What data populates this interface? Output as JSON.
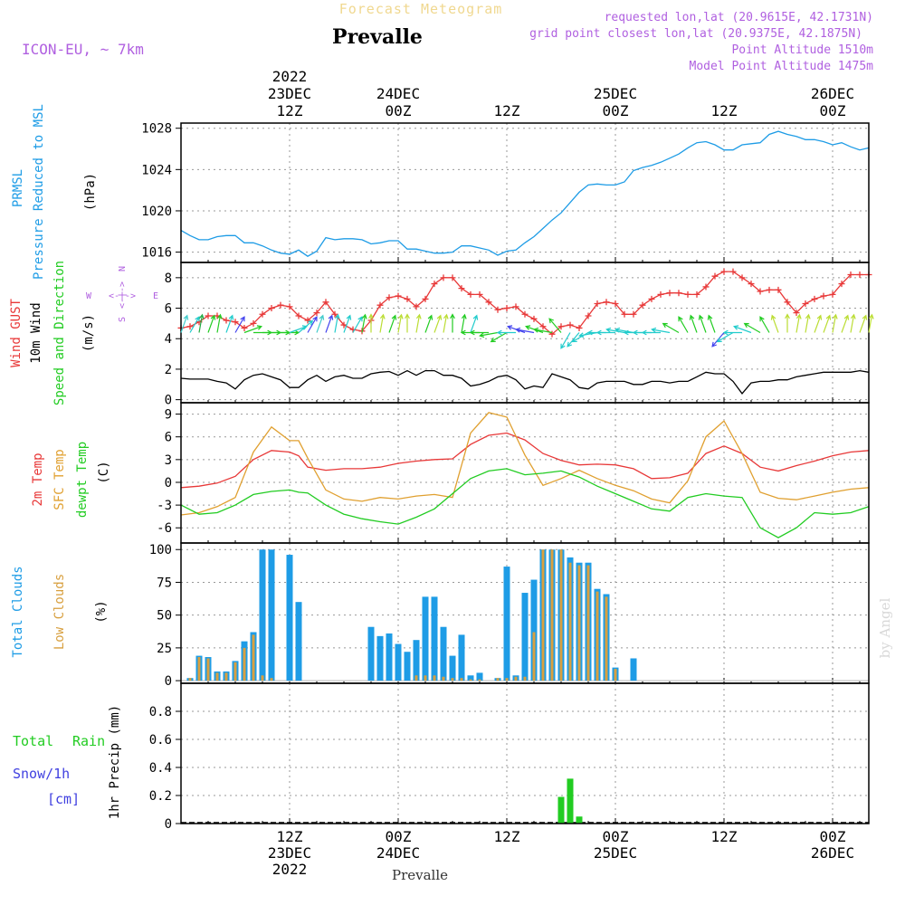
{
  "header": {
    "title": "Forecast Meteogram",
    "location": "Prevalle",
    "model": "ICON-EU, ~ 7km",
    "requested": "requested lon,lat (20.9615E, 42.1731N)",
    "grid_point": "grid point closest lon,lat (20.9375E, 42.1875N)",
    "point_altitude": "Point Altitude 1510m",
    "model_altitude": "Model Point Altitude 1475m",
    "watermark": "by Angel",
    "footer_location": "Prevalle"
  },
  "colors": {
    "pressure": "#1e9ce6",
    "gust": "#e83838",
    "wind": "#000000",
    "wind_dir": "#22cc22",
    "t2m": "#e83838",
    "sfc": "#e0a030",
    "dewpt": "#22cc22",
    "total_clouds": "#1e9ce6",
    "low_clouds": "#d8a040",
    "rain": "#22cc22",
    "snow": "#4040e0",
    "compass": "#b060e0",
    "header_purple": "#b060e0"
  },
  "time_axis": {
    "top_labels": [
      {
        "h": 12,
        "lines": [
          "2022",
          "23DEC",
          "12Z"
        ]
      },
      {
        "h": 24,
        "lines": [
          "24DEC",
          "00Z"
        ]
      },
      {
        "h": 36,
        "lines": [
          "12Z"
        ]
      },
      {
        "h": 48,
        "lines": [
          "25DEC",
          "00Z"
        ]
      },
      {
        "h": 60,
        "lines": [
          "12Z"
        ]
      },
      {
        "h": 72,
        "lines": [
          "26DEC",
          "00Z"
        ]
      }
    ],
    "bottom_labels": [
      {
        "h": 12,
        "lines": [
          "12Z",
          "23DEC",
          "2022"
        ]
      },
      {
        "h": 24,
        "lines": [
          "00Z",
          "24DEC"
        ]
      },
      {
        "h": 36,
        "lines": [
          "12Z"
        ]
      },
      {
        "h": 48,
        "lines": [
          "00Z",
          "25DEC"
        ]
      },
      {
        "h": 60,
        "lines": [
          "12Z"
        ]
      },
      {
        "h": 72,
        "lines": [
          "00Z",
          "26DEC"
        ]
      }
    ]
  },
  "chart_data": [
    {
      "type": "line",
      "name": "pressure",
      "labels": [
        "PRMSL",
        "Pressure Reduced to MSL",
        "(hPa)"
      ],
      "ylim": [
        1015,
        1028.5
      ],
      "ticks": [
        1016,
        1020,
        1024,
        1028
      ],
      "x": [
        0,
        1,
        2,
        3,
        4,
        5,
        6,
        7,
        8,
        9,
        10,
        11,
        12,
        13,
        14,
        15,
        16,
        17,
        18,
        19,
        20,
        21,
        22,
        23,
        24,
        25,
        26,
        27,
        28,
        29,
        30,
        31,
        32,
        33,
        34,
        35,
        36,
        37,
        38,
        39,
        40,
        41,
        42,
        43,
        44,
        45,
        46,
        47,
        48,
        49,
        50,
        51,
        52,
        53,
        54,
        55,
        56,
        57,
        58,
        59,
        60,
        61,
        62,
        63,
        64,
        65,
        66,
        67,
        68,
        69,
        70,
        71,
        72,
        73,
        74,
        75,
        76
      ],
      "series": [
        {
          "values": [
            1018.1,
            1017.6,
            1017.2,
            1017.2,
            1017.5,
            1017.6,
            1017.6,
            1016.9,
            1016.9,
            1016.6,
            1016.2,
            1015.9,
            1015.8,
            1016.2,
            1015.6,
            1016.1,
            1017.4,
            1017.2,
            1017.3,
            1017.3,
            1017.2,
            1016.8,
            1016.9,
            1017.1,
            1017.1,
            1016.3,
            1016.3,
            1016.1,
            1015.9,
            1015.9,
            1016.0,
            1016.6,
            1016.6,
            1016.4,
            1016.2,
            1015.7,
            1016.1,
            1016.2,
            1016.9,
            1017.5,
            1018.3,
            1019.1,
            1019.8,
            1020.8,
            1021.8,
            1022.5,
            1022.6,
            1022.5,
            1022.5,
            1022.8,
            1023.9,
            1024.2,
            1024.4,
            1024.7,
            1025.1,
            1025.5,
            1026.1,
            1026.6,
            1026.7,
            1026.4,
            1025.9,
            1025.9,
            1026.4,
            1026.5,
            1026.6,
            1027.4,
            1027.7,
            1027.4,
            1027.2,
            1026.9,
            1026.9,
            1026.7,
            1026.4,
            1026.6,
            1026.2,
            1025.9,
            1026.1
          ]
        }
      ]
    },
    {
      "type": "line",
      "name": "wind",
      "labels": [
        "Wind GUST",
        "10m Wind",
        "Speed and Direction",
        "(m/s)"
      ],
      "compass": {
        "n": "N",
        "s": "S",
        "e": "E",
        "w": "W",
        "arrow": "<-|->"
      },
      "ylim": [
        -0.2,
        9
      ],
      "ticks": [
        0,
        2,
        4,
        6,
        8
      ],
      "x": [
        0,
        1,
        2,
        3,
        4,
        5,
        6,
        7,
        8,
        9,
        10,
        11,
        12,
        13,
        14,
        15,
        16,
        17,
        18,
        19,
        20,
        21,
        22,
        23,
        24,
        25,
        26,
        27,
        28,
        29,
        30,
        31,
        32,
        33,
        34,
        35,
        36,
        37,
        38,
        39,
        40,
        41,
        42,
        43,
        44,
        45,
        46,
        47,
        48,
        49,
        50,
        51,
        52,
        53,
        54,
        55,
        56,
        57,
        58,
        59,
        60,
        61,
        62,
        63,
        64,
        65,
        66,
        67,
        68,
        69,
        70,
        71,
        72,
        73,
        74,
        75,
        76
      ],
      "series": [
        {
          "key": "gust",
          "values": [
            4.7,
            4.8,
            5.1,
            5.5,
            5.5,
            5.2,
            5.1,
            4.7,
            5.0,
            5.6,
            6.0,
            6.2,
            6.1,
            5.5,
            5.2,
            5.7,
            6.4,
            5.6,
            4.9,
            4.6,
            4.5,
            5.2,
            6.2,
            6.7,
            6.8,
            6.6,
            6.1,
            6.6,
            7.6,
            8.0,
            8.0,
            7.3,
            6.9,
            6.9,
            6.4,
            5.9,
            6.0,
            6.1,
            5.6,
            5.3,
            4.8,
            4.3,
            4.8,
            4.9,
            4.7,
            5.5,
            6.3,
            6.4,
            6.3,
            5.6,
            5.6,
            6.2,
            6.6,
            6.9,
            7.0,
            7.0,
            6.9,
            6.9,
            7.4,
            8.1,
            8.4,
            8.4,
            8.0,
            7.6,
            7.1,
            7.2,
            7.2,
            6.4,
            5.7,
            6.3,
            6.6,
            6.8,
            6.9,
            7.6,
            8.2,
            8.2,
            8.2
          ]
        },
        {
          "key": "wind",
          "values": [
            1.4,
            1.35,
            1.35,
            1.35,
            1.2,
            1.1,
            0.7,
            1.3,
            1.6,
            1.7,
            1.5,
            1.3,
            0.8,
            0.8,
            1.3,
            1.6,
            1.2,
            1.5,
            1.6,
            1.4,
            1.4,
            1.7,
            1.8,
            1.85,
            1.6,
            1.9,
            1.6,
            1.9,
            1.9,
            1.6,
            1.6,
            1.4,
            0.9,
            1.0,
            1.2,
            1.5,
            1.6,
            1.3,
            0.7,
            0.9,
            0.8,
            1.7,
            1.5,
            1.3,
            0.8,
            0.7,
            1.1,
            1.2,
            1.2,
            1.2,
            1.0,
            1.0,
            1.2,
            1.2,
            1.1,
            1.2,
            1.2,
            1.5,
            1.8,
            1.7,
            1.7,
            1.2,
            0.4,
            1.1,
            1.2,
            1.2,
            1.3,
            1.3,
            1.5,
            1.6,
            1.7,
            1.8,
            1.8,
            1.8,
            1.8,
            1.9,
            1.8
          ]
        }
      ]
    },
    {
      "type": "line",
      "name": "temperature",
      "labels": [
        "2m Temp",
        "SFC Temp",
        "dewpt Temp",
        "(C)"
      ],
      "ylim": [
        -8,
        10.5
      ],
      "ticks": [
        -6,
        -3,
        0,
        3,
        6,
        9
      ],
      "x": [
        0,
        2,
        4,
        6,
        8,
        10,
        12,
        13,
        14,
        16,
        18,
        20,
        22,
        24,
        26,
        28,
        30,
        32,
        34,
        36,
        38,
        40,
        42,
        44,
        46,
        48,
        50,
        52,
        54,
        56,
        58,
        60,
        62,
        64,
        66,
        68,
        70,
        72,
        74,
        76
      ],
      "series": [
        {
          "key": "t2m",
          "values": [
            -0.7,
            -0.5,
            -0.1,
            0.8,
            3.0,
            4.2,
            4.0,
            3.5,
            2.0,
            1.6,
            1.8,
            1.8,
            2.0,
            2.5,
            2.8,
            3.0,
            3.1,
            5.0,
            6.2,
            6.5,
            5.6,
            3.8,
            2.9,
            2.3,
            2.4,
            2.3,
            1.8,
            0.5,
            0.6,
            1.2,
            3.8,
            4.8,
            3.8,
            2.0,
            1.5,
            2.2,
            2.8,
            3.5,
            4.0,
            4.2
          ]
        },
        {
          "key": "sfc",
          "values": [
            -4.3,
            -4.0,
            -3.2,
            -2.0,
            4.0,
            7.3,
            5.5,
            5.5,
            3.2,
            -1.0,
            -2.2,
            -2.5,
            -2.0,
            -2.2,
            -1.8,
            -1.6,
            -2.0,
            6.5,
            9.2,
            8.6,
            3.6,
            -0.4,
            0.5,
            1.6,
            0.5,
            -0.4,
            -1.1,
            -2.2,
            -2.7,
            0.2,
            6.0,
            8.1,
            3.8,
            -1.3,
            -2.1,
            -2.3,
            -1.8,
            -1.3,
            -0.9,
            -0.7
          ]
        },
        {
          "key": "dewpt",
          "values": [
            -3.0,
            -4.2,
            -4.0,
            -3.0,
            -1.6,
            -1.2,
            -1.0,
            -1.3,
            -1.4,
            -3.0,
            -4.2,
            -4.8,
            -5.2,
            -5.5,
            -4.6,
            -3.5,
            -1.5,
            0.5,
            1.5,
            1.8,
            1.0,
            1.2,
            1.5,
            0.7,
            -0.5,
            -1.5,
            -2.5,
            -3.5,
            -3.8,
            -2.0,
            -1.5,
            -1.8,
            -2.0,
            -6.0,
            -7.3,
            -6.0,
            -4.0,
            -4.2,
            -4.0,
            -3.2
          ]
        }
      ]
    },
    {
      "type": "bar",
      "name": "clouds",
      "labels": [
        "Total Clouds",
        "Low Clouds",
        "(%)"
      ],
      "ylim": [
        -2,
        105
      ],
      "ticks": [
        0,
        25,
        50,
        75,
        100
      ],
      "x": [
        0,
        1,
        2,
        3,
        4,
        5,
        6,
        7,
        8,
        9,
        10,
        11,
        12,
        13,
        14,
        15,
        16,
        17,
        18,
        19,
        20,
        21,
        22,
        23,
        24,
        25,
        26,
        27,
        28,
        29,
        30,
        31,
        32,
        33,
        34,
        35,
        36,
        37,
        38,
        39,
        40,
        41,
        42,
        43,
        44,
        45,
        46,
        47,
        48,
        49,
        50,
        51,
        52,
        53,
        54,
        55,
        56,
        57,
        58,
        59,
        60,
        61,
        62,
        63,
        64,
        65,
        66,
        67,
        68,
        69,
        70,
        71,
        72,
        73,
        74,
        75,
        76
      ],
      "series": [
        {
          "key": "total_clouds",
          "values": [
            0,
            2,
            19,
            18,
            7,
            7,
            15,
            30,
            37,
            100,
            100,
            0,
            96,
            60,
            0,
            0,
            0,
            0,
            0,
            0,
            0,
            41,
            34,
            36,
            28,
            22,
            31,
            64,
            64,
            41,
            19,
            35,
            4,
            6,
            0,
            2,
            87,
            4,
            67,
            77,
            100,
            100,
            100,
            94,
            90,
            90,
            70,
            66,
            10,
            0,
            17,
            0,
            0,
            0,
            0,
            0,
            0,
            0,
            0,
            0,
            0,
            0,
            0,
            0,
            0,
            0,
            0,
            0,
            0,
            0,
            0,
            0,
            0,
            0,
            0,
            0,
            0
          ]
        },
        {
          "key": "low_clouds",
          "values": [
            0,
            2,
            18,
            17,
            6,
            6,
            14,
            25,
            35,
            4,
            2,
            0,
            0,
            0,
            0,
            0,
            0,
            0,
            0,
            0,
            0,
            0,
            0,
            0,
            0,
            0,
            4,
            4,
            4,
            3,
            2,
            2,
            1,
            1,
            0,
            2,
            2,
            3,
            3,
            37,
            100,
            100,
            100,
            90,
            88,
            88,
            68,
            64,
            9,
            0,
            0,
            0,
            0,
            0,
            0,
            0,
            0,
            0,
            0,
            0,
            0,
            0,
            0,
            0,
            0,
            0,
            0,
            0,
            0,
            0,
            0,
            0,
            0,
            0,
            0,
            0,
            0
          ]
        }
      ]
    },
    {
      "type": "bar",
      "name": "precip",
      "labels": [
        "Total",
        "Rain",
        "Snow/1h",
        "[cm]",
        "1hr Precip (mm)"
      ],
      "ylim": [
        0,
        1.0
      ],
      "ticks": [
        0,
        0.2,
        0.4,
        0.6,
        0.8
      ],
      "x": [
        42,
        43,
        44
      ],
      "series": [
        {
          "key": "rain",
          "values": [
            0.19,
            0.32,
            0.05
          ]
        }
      ]
    }
  ],
  "wind_vectors": {
    "x": [
      0,
      1,
      2,
      3,
      4,
      5,
      6,
      7,
      8,
      9,
      10,
      11,
      12,
      13,
      14,
      15,
      16,
      17,
      18,
      19,
      20,
      21,
      22,
      23,
      24,
      25,
      26,
      27,
      28,
      29,
      30,
      31,
      32,
      33,
      34,
      35,
      36,
      37,
      38,
      39,
      40,
      41,
      42,
      43,
      44,
      45,
      46,
      47,
      48,
      49,
      50,
      51,
      52,
      53,
      54,
      55,
      56,
      57,
      58,
      59,
      60,
      61,
      62,
      63,
      64,
      65,
      66,
      67,
      68,
      69,
      70,
      71,
      72,
      73,
      74,
      75,
      76
    ],
    "dir_deg": [
      200,
      210,
      190,
      200,
      190,
      200,
      210,
      250,
      270,
      270,
      270,
      270,
      250,
      230,
      210,
      200,
      200,
      190,
      200,
      210,
      190,
      180,
      190,
      200,
      190,
      180,
      190,
      200,
      200,
      190,
      180,
      190,
      200,
      90,
      90,
      80,
      60,
      90,
      110,
      100,
      110,
      100,
      140,
      30,
      40,
      60,
      80,
      90,
      90,
      100,
      100,
      90,
      90,
      90,
      100,
      120,
      150,
      160,
      160,
      160,
      40,
      60,
      90,
      110,
      120,
      150,
      160,
      180,
      190,
      190,
      200,
      200,
      190,
      200,
      190,
      200,
      190
    ],
    "color": [
      "#44cccc",
      "#22cccc",
      "#22aa44",
      "#22cc22",
      "#22cc22",
      "#22cccc",
      "#4444ee",
      "#22cc22",
      "#22cc22",
      "#22cc22",
      "#22cc22",
      "#22cc22",
      "#22cccc",
      "#22cccc",
      "#4444ee",
      "#44cccc",
      "#4444ee",
      "#22cccc",
      "#22cccc",
      "#22cccc",
      "#22cc22",
      "#bbdd33",
      "#bbdd33",
      "#22cc22",
      "#bbdd33",
      "#bbdd33",
      "#bbdd33",
      "#22cc22",
      "#bbdd33",
      "#bbdd33",
      "#22cc22",
      "#22cc22",
      "#22cccc",
      "#22cc22",
      "#22cc22",
      "#22cc22",
      "#22cc22",
      "#22cccc",
      "#4444ee",
      "#4444ee",
      "#22cc22",
      "#22cc22",
      "#22cc22",
      "#22cccc",
      "#22cccc",
      "#22cccc",
      "#22cccc",
      "#22cccc",
      "#22cccc",
      "#22cccc",
      "#22cccc",
      "#22cccc",
      "#22cccc",
      "#22cccc",
      "#22cccc",
      "#22cc22",
      "#22cc22",
      "#22cc22",
      "#22cc22",
      "#22cc22",
      "#4444ee",
      "#22cccc",
      "#22cccc",
      "#22cccc",
      "#22cc22",
      "#22cc22",
      "#bbdd33",
      "#bbdd33",
      "#bbdd33",
      "#bbdd33",
      "#bbdd33",
      "#bbdd33",
      "#bbdd33",
      "#bbdd33",
      "#bbdd33",
      "#bbdd33",
      "#bbdd33"
    ]
  }
}
